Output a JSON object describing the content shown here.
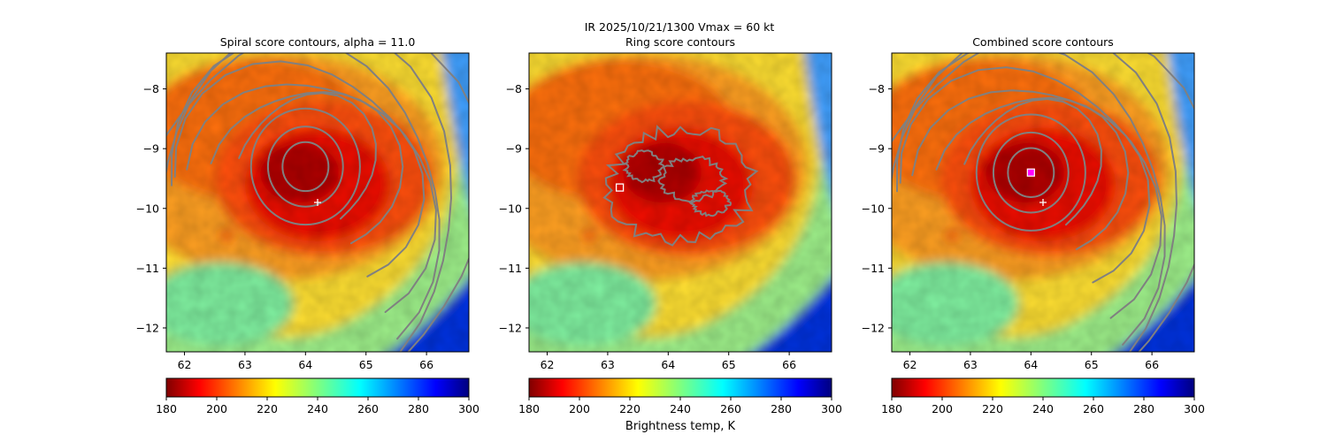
{
  "suptitle_line1": "IR  2025/10/21/1300    Vmax = 60 kt",
  "colorbar_label": "Brightness temp, K",
  "chart_data": [
    {
      "type": "heatmap",
      "title": "Spiral score contours, alpha = 11.0",
      "xlim": [
        61.7,
        66.7
      ],
      "ylim": [
        -12.4,
        -7.4
      ],
      "xticks": [
        62,
        63,
        64,
        65,
        66
      ],
      "yticks": [
        -8,
        -9,
        -10,
        -11,
        -12
      ],
      "colormap": "jet_r",
      "clim": [
        180,
        300
      ],
      "colorbar_ticks": [
        180,
        200,
        220,
        240,
        260,
        280,
        300
      ],
      "center_marker": {
        "symbol": "+",
        "x": 64.2,
        "y": -9.9,
        "color": "#ffffff"
      },
      "contour_color": "#808080",
      "contour_center": [
        64.0,
        -9.3
      ]
    },
    {
      "type": "heatmap",
      "title": "Ring score contours",
      "xlim": [
        61.7,
        66.7
      ],
      "ylim": [
        -12.4,
        -7.4
      ],
      "xticks": [
        62,
        63,
        64,
        65,
        66
      ],
      "yticks": [
        -8,
        -9,
        -10,
        -11,
        -12
      ],
      "colormap": "jet_r",
      "clim": [
        180,
        300
      ],
      "colorbar_ticks": [
        180,
        200,
        220,
        240,
        260,
        280,
        300
      ],
      "center_marker": {
        "symbol": "square",
        "x": 63.2,
        "y": -9.65,
        "color": "#ffffff"
      },
      "contour_color": "#808080"
    },
    {
      "type": "heatmap",
      "title": "Combined score contours",
      "xlim": [
        61.7,
        66.7
      ],
      "ylim": [
        -12.4,
        -7.4
      ],
      "xticks": [
        62,
        63,
        64,
        65,
        66
      ],
      "yticks": [
        -8,
        -9,
        -10,
        -11,
        -12
      ],
      "colormap": "jet_r",
      "clim": [
        180,
        300
      ],
      "colorbar_ticks": [
        180,
        200,
        220,
        240,
        260,
        280,
        300
      ],
      "center_marker": {
        "symbol": "+",
        "x": 64.2,
        "y": -9.9,
        "color": "#ffffff"
      },
      "best_marker": {
        "symbol": "square",
        "x": 64.0,
        "y": -9.4,
        "color": "#ff00ff"
      },
      "contour_color": "#808080",
      "contour_center": [
        64.0,
        -9.4
      ]
    }
  ]
}
